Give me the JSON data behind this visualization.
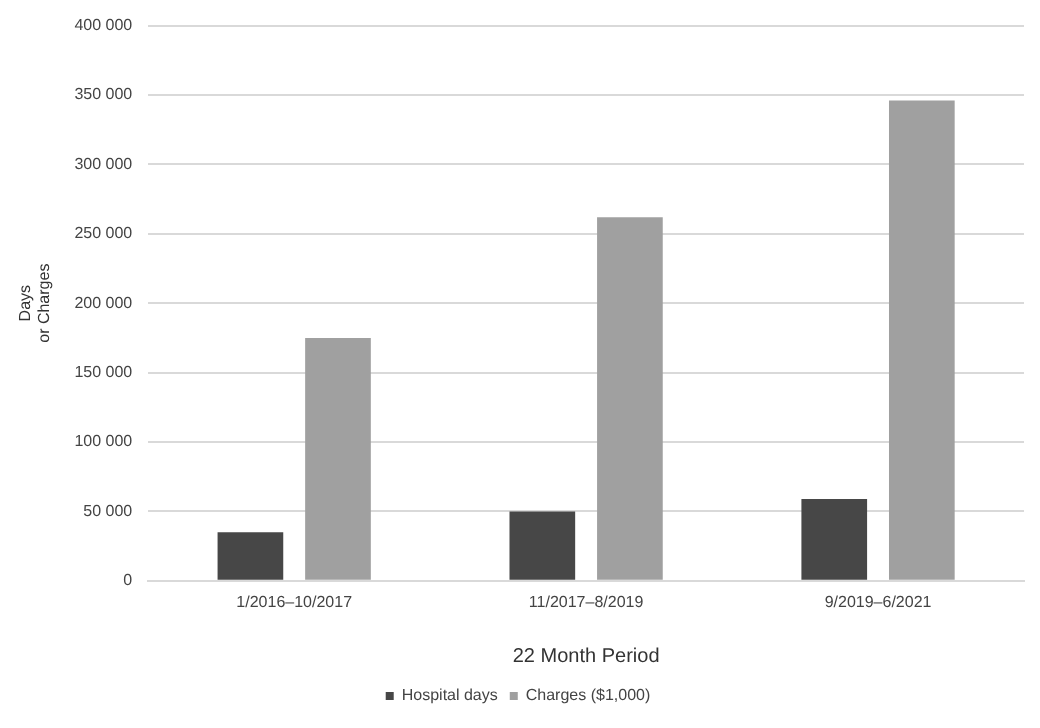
{
  "chart_data": {
    "type": "bar",
    "xlabel": "22 Month Period",
    "ylabel": "Days\nor Charges",
    "categories": [
      "1/2016–10/2017",
      "11/2017–8/2019",
      "9/2019–6/2021"
    ],
    "series": [
      {
        "name": "Hospital days",
        "color": "#474747",
        "values": [
          35000,
          50000,
          59000
        ]
      },
      {
        "name": "Charges ($1,000)",
        "color": "#a0a0a0",
        "values": [
          175000,
          262000,
          346000
        ]
      }
    ],
    "ylim": [
      0,
      400000
    ],
    "yticks": [
      {
        "value": 0,
        "label": "0"
      },
      {
        "value": 50000,
        "label": "50 000"
      },
      {
        "value": 100000,
        "label": "100 000"
      },
      {
        "value": 150000,
        "label": "150 000"
      },
      {
        "value": 200000,
        "label": "200 000"
      },
      {
        "value": 250000,
        "label": "250 000"
      },
      {
        "value": 300000,
        "label": "300 000"
      },
      {
        "value": 350000,
        "label": "350 000"
      },
      {
        "value": 400000,
        "label": "400 000"
      }
    ],
    "grid": "y",
    "legend": "bottom"
  }
}
